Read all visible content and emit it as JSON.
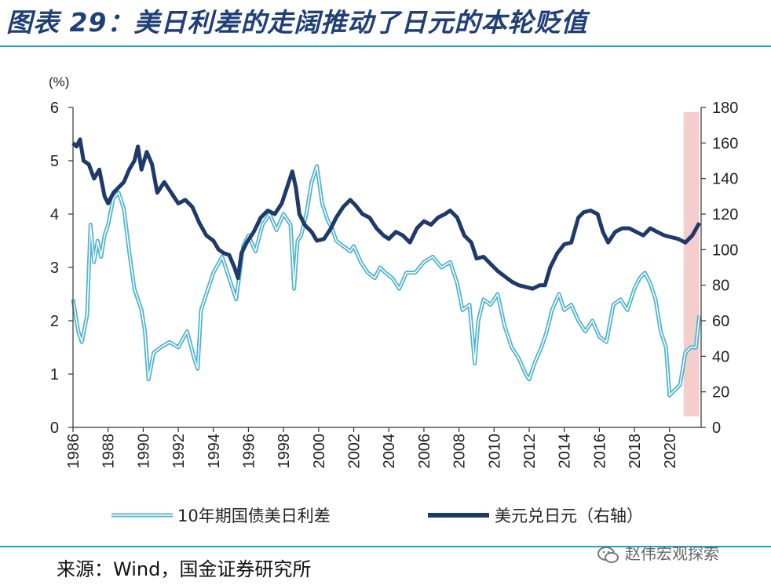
{
  "title": "图表 29：美日利差的走阔推动了日元的本轮贬值",
  "source": "来源：Wind，国金证券研究所",
  "watermark": "赵伟宏观探索",
  "chart_data": {
    "type": "line",
    "title": "图表 29：美日利差的走阔推动了日元的本轮贬值",
    "ylabel_left": "(%)",
    "left_axis": {
      "min": 0,
      "max": 6,
      "ticks": [
        0,
        1,
        2,
        3,
        4,
        5,
        6
      ]
    },
    "right_axis": {
      "min": 0,
      "max": 180,
      "ticks": [
        0,
        20,
        40,
        60,
        80,
        100,
        120,
        140,
        160,
        180
      ]
    },
    "x_axis": {
      "min": 1986,
      "max": 2021.8,
      "ticks": [
        "1986",
        "1988",
        "1990",
        "1992",
        "1994",
        "1996",
        "1998",
        "2000",
        "2002",
        "2004",
        "2006",
        "2008",
        "2010",
        "2012",
        "2014",
        "2016",
        "2018",
        "2020"
      ]
    },
    "highlight": {
      "from": 2020.8,
      "to": 2021.7,
      "color": "#f2c4c4"
    },
    "series": [
      {
        "name": "10年期国债美日利差",
        "axis": "left",
        "color": "#4fb3cf",
        "x": [
          1986.0,
          1986.3,
          1986.5,
          1986.8,
          1987.0,
          1987.2,
          1987.4,
          1987.6,
          1987.8,
          1988.0,
          1988.3,
          1988.6,
          1988.9,
          1989.2,
          1989.5,
          1989.7,
          1989.9,
          1990.1,
          1990.3,
          1990.6,
          1991.0,
          1991.5,
          1992.0,
          1992.5,
          1992.9,
          1993.1,
          1993.3,
          1993.6,
          1994.0,
          1994.5,
          1995.0,
          1995.3,
          1995.7,
          1996.0,
          1996.4,
          1996.8,
          1997.2,
          1997.6,
          1998.0,
          1998.4,
          1998.6,
          1998.8,
          1999.0,
          1999.3,
          1999.6,
          1999.9,
          2000.2,
          2000.5,
          2000.8,
          2001.0,
          2001.4,
          2001.8,
          2002.0,
          2002.4,
          2002.8,
          2003.2,
          2003.5,
          2003.8,
          2004.2,
          2004.6,
          2005.0,
          2005.5,
          2006.0,
          2006.5,
          2007.0,
          2007.5,
          2007.9,
          2008.2,
          2008.6,
          2008.9,
          2009.1,
          2009.4,
          2009.8,
          2010.2,
          2010.6,
          2011.0,
          2011.4,
          2011.8,
          2012.0,
          2012.3,
          2012.7,
          2013.0,
          2013.3,
          2013.7,
          2014.0,
          2014.4,
          2014.8,
          2015.2,
          2015.6,
          2016.0,
          2016.4,
          2016.8,
          2017.2,
          2017.6,
          2018.0,
          2018.3,
          2018.6,
          2018.9,
          2019.2,
          2019.5,
          2019.8,
          2020.0,
          2020.3,
          2020.6,
          2020.9,
          2021.2,
          2021.5,
          2021.7
        ],
        "values": [
          2.4,
          1.8,
          1.6,
          2.1,
          3.8,
          3.1,
          3.5,
          3.2,
          3.6,
          3.8,
          4.3,
          4.4,
          4.1,
          3.3,
          2.6,
          2.4,
          2.2,
          1.8,
          0.9,
          1.4,
          1.5,
          1.6,
          1.5,
          1.8,
          1.3,
          1.1,
          2.2,
          2.5,
          2.9,
          3.2,
          2.7,
          2.4,
          3.4,
          3.6,
          3.3,
          3.8,
          4.0,
          3.7,
          4.0,
          3.8,
          2.6,
          3.5,
          3.6,
          4.0,
          4.6,
          4.9,
          4.2,
          3.9,
          3.7,
          3.5,
          3.4,
          3.3,
          3.4,
          3.1,
          2.9,
          2.8,
          3.0,
          2.9,
          2.8,
          2.6,
          2.9,
          2.9,
          3.1,
          3.2,
          3.0,
          3.1,
          2.7,
          2.2,
          2.3,
          1.2,
          2.0,
          2.4,
          2.3,
          2.5,
          1.9,
          1.5,
          1.3,
          1.0,
          0.9,
          1.2,
          1.5,
          1.8,
          2.2,
          2.5,
          2.2,
          2.3,
          2.0,
          1.8,
          2.0,
          1.7,
          1.6,
          2.3,
          2.4,
          2.2,
          2.6,
          2.8,
          2.9,
          2.7,
          2.4,
          1.8,
          1.5,
          0.6,
          0.7,
          0.8,
          1.4,
          1.5,
          1.5,
          2.1
        ]
      },
      {
        "name": "美元兑日元（右轴）",
        "axis": "right",
        "color": "#1e3a6b",
        "x": [
          1986.0,
          1986.2,
          1986.4,
          1986.6,
          1986.9,
          1987.2,
          1987.5,
          1987.8,
          1988.0,
          1988.3,
          1988.6,
          1988.9,
          1989.2,
          1989.5,
          1989.7,
          1989.9,
          1990.2,
          1990.5,
          1990.8,
          1991.2,
          1991.6,
          1992.0,
          1992.4,
          1992.8,
          1993.2,
          1993.6,
          1994.0,
          1994.3,
          1994.6,
          1994.9,
          1995.2,
          1995.4,
          1995.6,
          1995.9,
          1996.3,
          1996.7,
          1997.1,
          1997.5,
          1997.9,
          1998.2,
          1998.5,
          1998.7,
          1998.9,
          1999.2,
          1999.6,
          1999.9,
          2000.3,
          2000.7,
          2001.0,
          2001.4,
          2001.8,
          2002.1,
          2002.5,
          2002.9,
          2003.3,
          2003.7,
          2004.0,
          2004.4,
          2004.8,
          2005.2,
          2005.6,
          2006.0,
          2006.4,
          2006.8,
          2007.2,
          2007.5,
          2007.9,
          2008.3,
          2008.7,
          2009.0,
          2009.4,
          2009.8,
          2010.2,
          2010.6,
          2011.0,
          2011.4,
          2011.8,
          2012.2,
          2012.6,
          2012.9,
          2013.2,
          2013.6,
          2014.0,
          2014.4,
          2014.8,
          2015.1,
          2015.5,
          2015.9,
          2016.2,
          2016.5,
          2016.9,
          2017.3,
          2017.7,
          2018.1,
          2018.5,
          2018.9,
          2019.3,
          2019.7,
          2020.1,
          2020.5,
          2020.9,
          2021.3,
          2021.7
        ],
        "values": [
          160,
          158,
          162,
          150,
          148,
          140,
          145,
          130,
          126,
          132,
          135,
          138,
          145,
          150,
          158,
          145,
          155,
          148,
          132,
          138,
          132,
          126,
          128,
          124,
          115,
          108,
          105,
          100,
          98,
          97,
          90,
          84,
          98,
          104,
          110,
          118,
          122,
          120,
          126,
          135,
          144,
          135,
          120,
          114,
          110,
          105,
          106,
          112,
          118,
          124,
          128,
          125,
          120,
          118,
          112,
          108,
          106,
          110,
          108,
          104,
          112,
          116,
          114,
          118,
          120,
          122,
          118,
          108,
          104,
          95,
          96,
          92,
          88,
          85,
          82,
          80,
          79,
          78,
          80,
          80,
          90,
          98,
          103,
          104,
          118,
          121,
          122,
          120,
          110,
          104,
          110,
          112,
          112,
          110,
          108,
          112,
          110,
          108,
          107,
          106,
          104,
          108,
          115
        ]
      }
    ],
    "legend": [
      "10年期国债美日利差",
      "美元兑日元（右轴）"
    ]
  }
}
